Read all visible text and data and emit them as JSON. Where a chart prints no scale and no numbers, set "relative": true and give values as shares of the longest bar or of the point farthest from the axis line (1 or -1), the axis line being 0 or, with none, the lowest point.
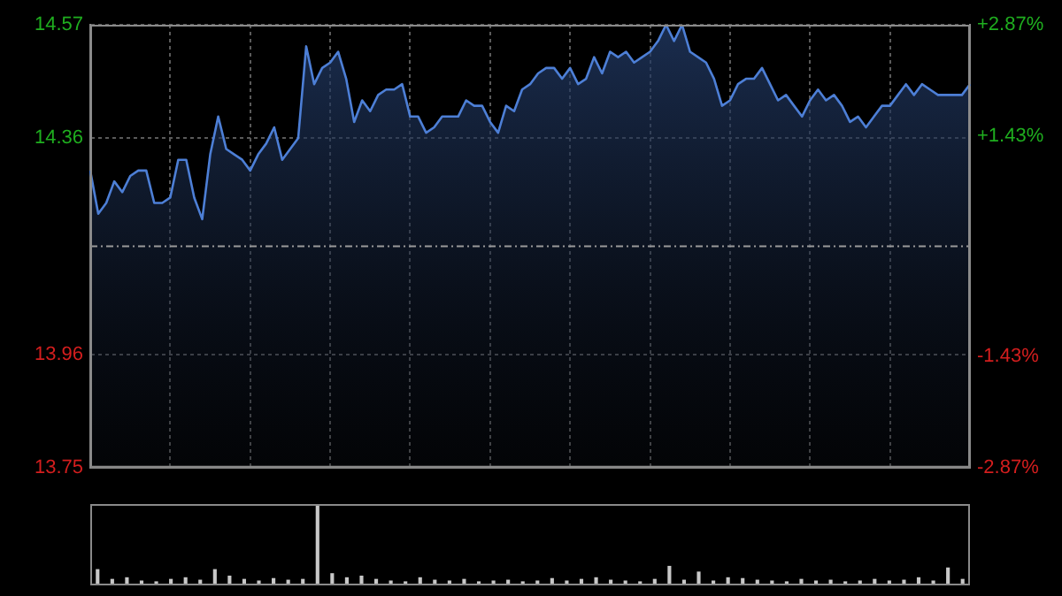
{
  "chart_data": [
    {
      "type": "area",
      "color": "#4d7fd6",
      "grid": true,
      "tick_labels": "y",
      "categories": [
        null,
        null,
        null,
        null,
        null,
        null,
        null,
        null,
        null,
        null,
        null,
        null,
        null,
        null,
        null,
        null,
        null,
        null,
        null,
        null,
        null,
        null,
        null,
        null,
        null,
        null,
        null,
        null,
        null,
        null,
        null,
        null,
        null,
        null,
        null,
        null,
        null,
        null,
        null,
        null,
        null,
        null,
        null,
        null,
        null,
        null,
        null,
        null,
        null,
        null,
        null,
        null,
        null,
        null,
        null,
        null,
        null,
        null,
        null,
        null,
        null,
        null,
        null,
        null,
        null,
        null,
        null,
        null,
        null,
        null,
        null,
        null,
        null,
        null,
        null,
        null,
        null,
        null,
        null,
        null,
        null,
        null,
        null,
        null,
        null,
        null,
        null,
        null,
        null,
        null,
        null,
        null,
        null,
        null,
        null,
        null,
        null,
        null,
        null,
        null,
        null,
        null,
        null,
        null,
        null,
        null,
        null,
        null,
        null,
        null,
        null
      ],
      "ylim": [
        13.75,
        14.57
      ],
      "yticks": [
        13.75,
        13.96,
        14.36,
        14.57
      ],
      "y2lim": [
        -2.87,
        2.87
      ],
      "y2ticks": [
        {
          "value": -2.87,
          "label": "-2.87%"
        },
        {
          "value": -1.43,
          "label": "-1.43%"
        },
        {
          "value": 1.43,
          "label": "+1.43%"
        },
        {
          "value": 2.87,
          "label": "+2.87%"
        }
      ],
      "ref_lines": [
        {
          "axis": "y",
          "value": 14.16,
          "label": null
        }
      ],
      "values": [
        14.3,
        14.22,
        14.24,
        14.28,
        14.26,
        14.29,
        14.3,
        14.3,
        14.24,
        14.24,
        14.25,
        14.32,
        14.32,
        14.25,
        14.21,
        14.33,
        14.4,
        14.34,
        14.33,
        14.32,
        14.3,
        14.33,
        14.35,
        14.38,
        14.32,
        14.34,
        14.36,
        14.53,
        14.46,
        14.49,
        14.5,
        14.52,
        14.47,
        14.39,
        14.43,
        14.41,
        14.44,
        14.45,
        14.45,
        14.46,
        14.4,
        14.4,
        14.37,
        14.38,
        14.4,
        14.4,
        14.4,
        14.43,
        14.42,
        14.42,
        14.39,
        14.37,
        14.42,
        14.41,
        14.45,
        14.46,
        14.48,
        14.49,
        14.49,
        14.47,
        14.49,
        14.46,
        14.47,
        14.51,
        14.48,
        14.52,
        14.51,
        14.52,
        14.5,
        14.51,
        14.52,
        14.54,
        14.57,
        14.54,
        14.57,
        14.52,
        14.51,
        14.5,
        14.47,
        14.42,
        14.43,
        14.46,
        14.47,
        14.47,
        14.49,
        14.46,
        14.43,
        14.44,
        14.42,
        14.4,
        14.43,
        14.45,
        14.43,
        14.44,
        14.42,
        14.39,
        14.4,
        14.38,
        14.4,
        14.42,
        14.42,
        14.44,
        14.46,
        14.44,
        14.46,
        14.45,
        14.44,
        14.44,
        14.44,
        14.44,
        14.46
      ]
    },
    {
      "type": "bar",
      "relative": true,
      "tick_labels": false,
      "color": "#c8c8c8",
      "categories": [
        null,
        null,
        null,
        null,
        null,
        null,
        null,
        null,
        null,
        null,
        null,
        null,
        null,
        null,
        null,
        null,
        null,
        null,
        null,
        null,
        null,
        null,
        null,
        null,
        null,
        null,
        null,
        null,
        null,
        null,
        null,
        null,
        null,
        null,
        null,
        null,
        null,
        null,
        null,
        null,
        null,
        null,
        null,
        null,
        null,
        null,
        null,
        null,
        null,
        null,
        null,
        null,
        null,
        null,
        null,
        null,
        null,
        null,
        null,
        null
      ],
      "values": [
        0.2,
        0.08,
        0.1,
        0.06,
        0.05,
        0.08,
        0.1,
        0.07,
        0.2,
        0.12,
        0.08,
        0.06,
        0.09,
        0.07,
        0.08,
        1,
        0.15,
        0.1,
        0.12,
        0.08,
        0.06,
        0.05,
        0.1,
        0.07,
        0.06,
        0.08,
        0.05,
        0.06,
        0.07,
        0.05,
        0.06,
        0.09,
        0.06,
        0.08,
        0.1,
        0.07,
        0.06,
        0.05,
        0.08,
        0.24,
        0.07,
        0.17,
        0.06,
        0.1,
        0.09,
        0.07,
        0.06,
        0.05,
        0.08,
        0.06,
        0.07,
        0.05,
        0.06,
        0.08,
        0.06,
        0.07,
        0.1,
        0.06,
        0.22,
        0.08
      ]
    }
  ]
}
